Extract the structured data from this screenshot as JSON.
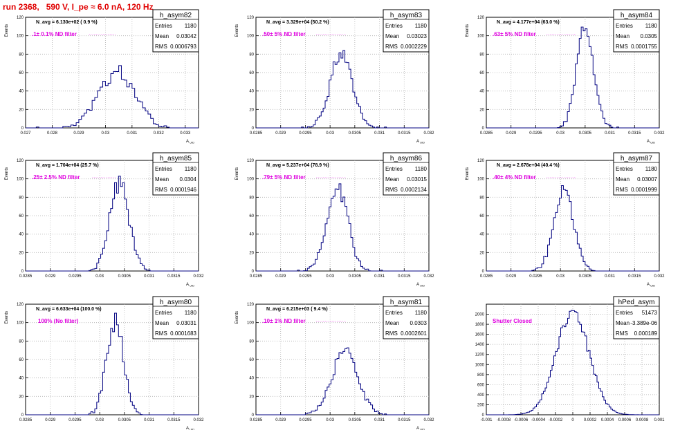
{
  "page": {
    "title": "run 2368,   590 V, I_pe ≈ 6.0 nA, 120 Hz"
  },
  "colors": {
    "title": "#e00000",
    "annotation": "#e000e0",
    "histogram_line": "#000080",
    "grid": "#b0b0b0"
  },
  "chart_data": [
    {
      "type": "histogram",
      "name": "h_asym82",
      "header": "N_avg = 6.130e+02 ( 0.9 %)",
      "annotation": ".1± 0.1% ND filter",
      "stats": {
        "Entries": "1180",
        "Mean": "0.03042",
        "RMS": "0.0006793"
      },
      "xlabel": "A_UID",
      "ylabel": "Events",
      "xlim": [
        0.027,
        0.0335
      ],
      "ylim": [
        0,
        120
      ],
      "xticks": [
        "0.027",
        "0.028",
        "0.029",
        "0.03",
        "0.031",
        "0.032",
        "0.033"
      ],
      "xtick_values": [
        0.027,
        0.028,
        0.029,
        0.03,
        0.031,
        0.032,
        0.033
      ],
      "yticks": [
        0,
        20,
        40,
        60,
        80,
        100,
        120
      ],
      "mean": 0.03042,
      "rms": 0.0006793,
      "peak": 60,
      "entries": 1180,
      "bin_width": 0.0001
    },
    {
      "type": "histogram",
      "name": "h_asym83",
      "header": "N_avg = 3.329e+04 (50.2 %)",
      "annotation": ".50± 5% ND filter",
      "stats": {
        "Entries": "1180",
        "Mean": "0.03023",
        "RMS": "0.0002229"
      },
      "xlabel": "A_UID",
      "ylabel": "Events",
      "xlim": [
        0.0285,
        0.032
      ],
      "ylim": [
        0,
        120
      ],
      "xticks": [
        "0.0285",
        "0.029",
        "0.0295",
        "0.03",
        "0.0305",
        "0.031",
        "0.0315",
        "0.032"
      ],
      "xtick_values": [
        0.0285,
        0.029,
        0.0295,
        0.03,
        0.0305,
        0.031,
        0.0315,
        0.032
      ],
      "yticks": [
        0,
        20,
        40,
        60,
        80,
        100,
        120
      ],
      "mean": 0.03023,
      "rms": 0.0002229,
      "peak": 82,
      "entries": 1180,
      "bin_width": 4e-05
    },
    {
      "type": "histogram",
      "name": "h_asym84",
      "header": "N_avg = 4.177e+04 (63.0 %)",
      "annotation": ".63± 5% ND filter",
      "stats": {
        "Entries": "1180",
        "Mean": "0.0305",
        "RMS": "0.0001755"
      },
      "xlabel": "A_UID",
      "ylabel": "Events",
      "xlim": [
        0.0285,
        0.032
      ],
      "ylim": [
        0,
        120
      ],
      "xticks": [
        "0.0285",
        "0.029",
        "0.0295",
        "0.03",
        "0.0305",
        "0.031",
        "0.0315",
        "0.032"
      ],
      "xtick_values": [
        0.0285,
        0.029,
        0.0295,
        0.03,
        0.0305,
        0.031,
        0.0315,
        0.032
      ],
      "yticks": [
        0,
        20,
        40,
        60,
        80,
        100,
        120
      ],
      "mean": 0.0305,
      "rms": 0.0001755,
      "peak": 108,
      "entries": 1180,
      "bin_width": 4e-05
    },
    {
      "type": "histogram",
      "name": "h_asym85",
      "header": "N_avg = 1.704e+04 (25.7 %)",
      "annotation": ".25± 2.5% ND filter",
      "stats": {
        "Entries": "1180",
        "Mean": "0.0304",
        "RMS": "0.0001946"
      },
      "xlabel": "A_UID",
      "ylabel": "Events",
      "xlim": [
        0.0285,
        0.032
      ],
      "ylim": [
        0,
        120
      ],
      "xticks": [
        "0.0285",
        "0.029",
        "0.0295",
        "0.03",
        "0.0305",
        "0.031",
        "0.0315",
        "0.032"
      ],
      "xtick_values": [
        0.0285,
        0.029,
        0.0295,
        0.03,
        0.0305,
        0.031,
        0.0315,
        0.032
      ],
      "yticks": [
        0,
        20,
        40,
        60,
        80,
        100,
        120
      ],
      "mean": 0.0304,
      "rms": 0.0001946,
      "peak": 94,
      "entries": 1180,
      "bin_width": 4e-05
    },
    {
      "type": "histogram",
      "name": "h_asym86",
      "header": "N_avg = 5.237e+04 (78.9 %)",
      "annotation": ".79± 5% ND filter",
      "stats": {
        "Entries": "1180",
        "Mean": "0.03015",
        "RMS": "0.0002134"
      },
      "xlabel": "A_UID",
      "ylabel": "Events",
      "xlim": [
        0.0285,
        0.032
      ],
      "ylim": [
        0,
        120
      ],
      "xticks": [
        "0.0285",
        "0.029",
        "0.0295",
        "0.03",
        "0.0305",
        "0.031",
        "0.0315",
        "0.032"
      ],
      "xtick_values": [
        0.0285,
        0.029,
        0.0295,
        0.03,
        0.0305,
        0.031,
        0.0315,
        0.032
      ],
      "yticks": [
        0,
        20,
        40,
        60,
        80,
        100,
        120
      ],
      "mean": 0.03015,
      "rms": 0.0002134,
      "peak": 91,
      "entries": 1180,
      "bin_width": 4e-05
    },
    {
      "type": "histogram",
      "name": "h_asym87",
      "header": "N_avg = 2.678e+04 (40.4 %)",
      "annotation": ".40± 4% ND filter",
      "stats": {
        "Entries": "1180",
        "Mean": "0.03007",
        "RMS": "0.0001999"
      },
      "xlabel": "A_UID",
      "ylabel": "Events",
      "xlim": [
        0.0285,
        0.032
      ],
      "ylim": [
        0,
        120
      ],
      "xticks": [
        "0.0285",
        "0.029",
        "0.0295",
        "0.03",
        "0.0305",
        "0.031",
        "0.0315",
        "0.032"
      ],
      "xtick_values": [
        0.0285,
        0.029,
        0.0295,
        0.03,
        0.0305,
        0.031,
        0.0315,
        0.032
      ],
      "yticks": [
        0,
        20,
        40,
        60,
        80,
        100,
        120
      ],
      "mean": 0.03007,
      "rms": 0.0001999,
      "peak": 88,
      "entries": 1180,
      "bin_width": 4e-05
    },
    {
      "type": "histogram",
      "name": "h_asym80",
      "header": "N_avg = 6.633e+04 (100.0 %)",
      "annotation": "100% (No filter)",
      "stats": {
        "Entries": "1180",
        "Mean": "0.03031",
        "RMS": "0.0001683"
      },
      "xlabel": "A_UID",
      "ylabel": "Events",
      "xlim": [
        0.0285,
        0.032
      ],
      "ylim": [
        0,
        120
      ],
      "xticks": [
        "0.0285",
        "0.029",
        "0.0295",
        "0.03",
        "0.0305",
        "0.031",
        "0.0315",
        "0.032"
      ],
      "xtick_values": [
        0.0285,
        0.029,
        0.0295,
        0.03,
        0.0305,
        0.031,
        0.0315,
        0.032
      ],
      "yticks": [
        0,
        20,
        40,
        60,
        80,
        100,
        120
      ],
      "mean": 0.03031,
      "rms": 0.0001683,
      "peak": 103,
      "entries": 1180,
      "bin_width": 4e-05
    },
    {
      "type": "histogram",
      "name": "h_asym81",
      "header": "N_avg = 6.215e+03 ( 9.4 %)",
      "annotation": ".10± 1% ND filter",
      "stats": {
        "Entries": "1180",
        "Mean": "0.0303",
        "RMS": "0.0002601"
      },
      "xlabel": "A_UID",
      "ylabel": "Events",
      "xlim": [
        0.0285,
        0.032
      ],
      "ylim": [
        0,
        120
      ],
      "xticks": [
        "0.0285",
        "0.029",
        "0.0295",
        "0.03",
        "0.0305",
        "0.031",
        "0.0315",
        "0.032"
      ],
      "xtick_values": [
        0.0285,
        0.029,
        0.0295,
        0.03,
        0.0305,
        0.031,
        0.0315,
        0.032
      ],
      "yticks": [
        0,
        20,
        40,
        60,
        80,
        100,
        120
      ],
      "mean": 0.0303,
      "rms": 0.0002601,
      "peak": 70,
      "entries": 1180,
      "bin_width": 4e-05
    },
    {
      "type": "histogram",
      "name": "hPed_asym",
      "header": "",
      "annotation": "Shutter Closed",
      "stats": {
        "Entries": "51473",
        "Mean": "-3.389e-06",
        "RMS": "0.000189"
      },
      "xlabel": "",
      "ylabel": "",
      "xlim": [
        -0.001,
        0.001
      ],
      "ylim": [
        0,
        2200
      ],
      "xticks": [
        "-0.001",
        "-0.0008",
        "-0.0006",
        "-0.0004",
        "-0.0002",
        "0",
        "0.0002",
        "0.0004",
        "0.0006",
        "0.0008",
        "0.001"
      ],
      "xtick_values": [
        -0.001,
        -0.0008,
        -0.0006,
        -0.0004,
        -0.0002,
        0,
        0.0002,
        0.0004,
        0.0006,
        0.0008,
        0.001
      ],
      "yticks": [
        0,
        200,
        400,
        600,
        800,
        1000,
        1200,
        1400,
        1600,
        1800,
        2000
      ],
      "mean": -3.389e-06,
      "rms": 0.000189,
      "peak": 2050,
      "entries": 51473,
      "bin_width": 2e-05
    }
  ]
}
